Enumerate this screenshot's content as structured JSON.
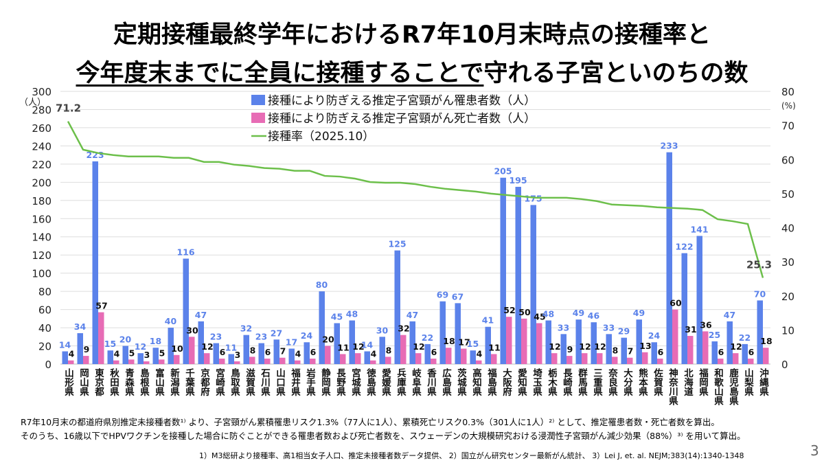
{
  "title": {
    "line1": "定期接種最終学年におけるR7年10月末時点の接種率と",
    "line2_underlined": "今年度末までに全員に接種することで",
    "line2_rest": "守れる子宮といのちの数"
  },
  "chart_data": {
    "type": "bar+line",
    "categories": [
      "山形県",
      "岡山県",
      "東京都",
      "秋田県",
      "青森県",
      "島根県",
      "富山県",
      "新潟県",
      "千葉県",
      "京都府",
      "宮崎県",
      "鳥取県",
      "滋賀県",
      "石川県",
      "山口県",
      "福井県",
      "岩手県",
      "静岡県",
      "長野県",
      "宮城県",
      "徳島県",
      "愛媛県",
      "兵庫県",
      "岐阜県",
      "香川県",
      "広島県",
      "茨城県",
      "高知県",
      "福島県",
      "大阪府",
      "愛知県",
      "埼玉県",
      "栃木県",
      "長崎県",
      "群馬県",
      "三重県",
      "奈良県",
      "大分県",
      "熊本県",
      "佐賀県",
      "神奈川県",
      "北海道",
      "福岡県",
      "和歌山県",
      "鹿児島県",
      "山梨県",
      "沖縄県"
    ],
    "series": [
      {
        "name": "接種により防ぎえる推定子宮頸がん罹患者数（人）",
        "type": "bar",
        "axis": "left",
        "color": "#5b82ea",
        "values": [
          14,
          34,
          223,
          15,
          20,
          12,
          18,
          40,
          116,
          47,
          23,
          11,
          32,
          23,
          27,
          17,
          24,
          80,
          45,
          48,
          14,
          30,
          125,
          47,
          22,
          69,
          67,
          15,
          41,
          205,
          195,
          175,
          48,
          33,
          49,
          46,
          33,
          29,
          49,
          24,
          233,
          122,
          141,
          25,
          47,
          22,
          70
        ]
      },
      {
        "name": "接種により防ぎえる推定子宮頸がん死亡者数（人）",
        "type": "bar",
        "axis": "left",
        "color": "#e76cb5",
        "values": [
          4,
          9,
          57,
          4,
          5,
          3,
          5,
          10,
          30,
          12,
          6,
          3,
          8,
          6,
          7,
          4,
          6,
          20,
          11,
          12,
          4,
          8,
          32,
          12,
          6,
          18,
          17,
          4,
          11,
          52,
          50,
          45,
          12,
          9,
          12,
          12,
          8,
          7,
          13,
          6,
          60,
          31,
          36,
          6,
          12,
          6,
          18
        ]
      },
      {
        "name": "接種率（2025.10）",
        "type": "line",
        "axis": "right",
        "color": "#6cbf4a",
        "values": [
          71.2,
          62.9,
          61.9,
          61.3,
          60.9,
          60.9,
          60.9,
          60.5,
          60.5,
          59.3,
          59.3,
          58.5,
          58.1,
          57.5,
          57.3,
          56.7,
          56.7,
          55.2,
          55.0,
          54.4,
          53.4,
          53.2,
          53.2,
          52.8,
          52.0,
          51.4,
          51.0,
          50.6,
          50.0,
          49.6,
          49.2,
          48.8,
          48.8,
          48.8,
          48.4,
          47.8,
          46.8,
          46.6,
          46.4,
          46.0,
          45.8,
          45.6,
          45.2,
          42.5,
          41.9,
          41.1,
          25.3
        ],
        "labeled_points": {
          "first": "71.2",
          "last": "25.3"
        }
      }
    ],
    "y_left": {
      "unit": "（人）",
      "range": [
        0,
        300
      ],
      "ticks": [
        "0",
        "20",
        "40",
        "60",
        "80",
        "100",
        "120",
        "140",
        "160",
        "180",
        "200",
        "220",
        "240",
        "260",
        "280",
        "300"
      ]
    },
    "y_right": {
      "unit": "(%)",
      "range": [
        0,
        80
      ],
      "ticks": [
        "0",
        "10",
        "20",
        "30",
        "40",
        "50",
        "60",
        "70",
        "80"
      ]
    },
    "grid": true,
    "legend": "top-center"
  },
  "notes": {
    "line1": "R7年10月末の都道府県別推定未接種者数¹⁾ より、子宮頸がん累積罹患リスク1.3%（77人に1人）、累積死亡リスク0.3%（301人に1人）²⁾ として、推定罹患者数・死亡者数を算出。",
    "line2": "そのうち、16歳以下でHPVワクチンを接種した場合に防ぐことができる罹患者数および死亡者数を、スウェーデンの大規模研究おける浸潤性子宮頸がん減少効果（88%）³⁾ を用いて算出。",
    "references": "1）M3総研より接種率、高1相当女子人口、推定未接種者数データ提供、 2）国立がん研究センター最新がん統計、 3）Lei J, et. al. NEJM;383(14):1340-1348"
  },
  "page_number": "3"
}
